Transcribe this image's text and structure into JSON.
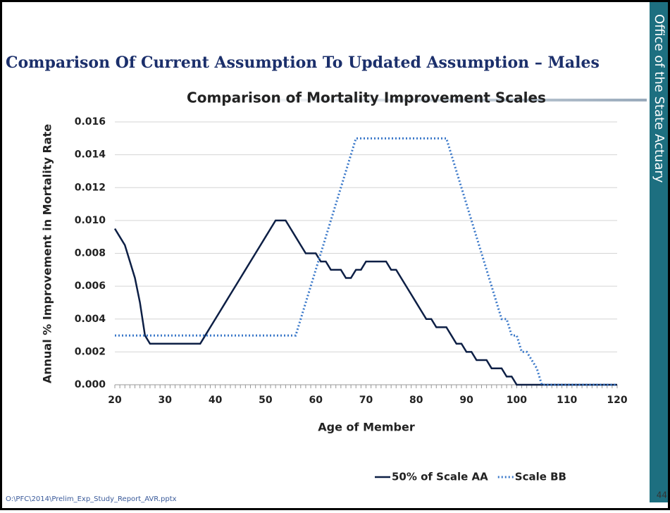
{
  "slide": {
    "title": "Comparison Of Current Assumption To Updated Assumption – Males",
    "sidebar": "Office of the State Actuary",
    "page_number": "44",
    "footer": "O:\\PFC\\2014\\Prelim_Exp_Study_Report_AVR.pptx"
  },
  "chart_data": {
    "type": "line",
    "title": "Comparison of Mortality Improvement Scales",
    "x_label": "Age of Member",
    "y_label": "Annual % Improvement in Mortality Rate",
    "x": [
      20,
      21,
      22,
      23,
      24,
      25,
      26,
      27,
      28,
      29,
      30,
      31,
      32,
      33,
      34,
      35,
      36,
      37,
      38,
      39,
      40,
      41,
      42,
      43,
      44,
      45,
      46,
      47,
      48,
      49,
      50,
      51,
      52,
      53,
      54,
      55,
      56,
      57,
      58,
      59,
      60,
      61,
      62,
      63,
      64,
      65,
      66,
      67,
      68,
      69,
      70,
      71,
      72,
      73,
      74,
      75,
      76,
      77,
      78,
      79,
      80,
      81,
      82,
      83,
      84,
      85,
      86,
      87,
      88,
      89,
      90,
      91,
      92,
      93,
      94,
      95,
      96,
      97,
      98,
      99,
      100,
      101,
      102,
      103,
      104,
      105,
      106,
      107,
      108,
      109,
      110,
      111,
      112,
      113,
      114,
      115,
      116,
      117,
      118,
      119,
      120
    ],
    "series": [
      {
        "name": "50% of Scale AA",
        "color": "#0d1f45",
        "dash": "solid",
        "values": [
          0.0095,
          0.009,
          0.0085,
          0.0075,
          0.0065,
          0.005,
          0.003,
          0.0025,
          0.0025,
          0.0025,
          0.0025,
          0.0025,
          0.0025,
          0.0025,
          0.0025,
          0.0025,
          0.0025,
          0.0025,
          0.003,
          0.0035,
          0.004,
          0.0045,
          0.005,
          0.0055,
          0.006,
          0.0065,
          0.007,
          0.0075,
          0.008,
          0.0085,
          0.009,
          0.0095,
          0.01,
          0.01,
          0.01,
          0.0095,
          0.009,
          0.0085,
          0.008,
          0.008,
          0.008,
          0.0075,
          0.0075,
          0.007,
          0.007,
          0.007,
          0.0065,
          0.0065,
          0.007,
          0.007,
          0.0075,
          0.0075,
          0.0075,
          0.0075,
          0.0075,
          0.007,
          0.007,
          0.0065,
          0.006,
          0.0055,
          0.005,
          0.0045,
          0.004,
          0.004,
          0.0035,
          0.0035,
          0.0035,
          0.003,
          0.0025,
          0.0025,
          0.002,
          0.002,
          0.0015,
          0.0015,
          0.0015,
          0.001,
          0.001,
          0.001,
          0.0005,
          0.0005,
          0,
          0,
          0,
          0,
          0,
          0,
          0,
          0,
          0,
          0,
          0,
          0,
          0,
          0,
          0,
          0,
          0,
          0,
          0,
          0,
          0
        ]
      },
      {
        "name": "Scale BB",
        "color": "#3a78c9",
        "dash": "dotted",
        "values": [
          0.003,
          0.003,
          0.003,
          0.003,
          0.003,
          0.003,
          0.003,
          0.003,
          0.003,
          0.003,
          0.003,
          0.003,
          0.003,
          0.003,
          0.003,
          0.003,
          0.003,
          0.003,
          0.003,
          0.003,
          0.003,
          0.003,
          0.003,
          0.003,
          0.003,
          0.003,
          0.003,
          0.003,
          0.003,
          0.003,
          0.003,
          0.003,
          0.003,
          0.003,
          0.003,
          0.003,
          0.003,
          0.004,
          0.005,
          0.006,
          0.007,
          0.008,
          0.009,
          0.01,
          0.011,
          0.012,
          0.013,
          0.014,
          0.015,
          0.015,
          0.015,
          0.015,
          0.015,
          0.015,
          0.015,
          0.015,
          0.015,
          0.015,
          0.015,
          0.015,
          0.015,
          0.015,
          0.015,
          0.015,
          0.015,
          0.015,
          0.015,
          0.014,
          0.013,
          0.012,
          0.011,
          0.01,
          0.009,
          0.008,
          0.007,
          0.006,
          0.005,
          0.004,
          0.004,
          0.003,
          0.003,
          0.002,
          0.002,
          0.0015,
          0.001,
          0,
          0,
          0,
          0,
          0,
          0,
          0,
          0,
          0,
          0,
          0,
          0,
          0,
          0,
          0,
          0
        ]
      }
    ],
    "xlim": [
      20,
      120
    ],
    "ylim": [
      0,
      0.016
    ],
    "xticks": [
      20,
      30,
      40,
      50,
      60,
      70,
      80,
      90,
      100,
      110,
      120
    ],
    "yticks": [
      {
        "value": 0,
        "label": "0.000"
      },
      {
        "value": 0.002,
        "label": "0.002"
      },
      {
        "value": 0.004,
        "label": "0.004"
      },
      {
        "value": 0.006,
        "label": "0.006"
      },
      {
        "value": 0.008,
        "label": "0.008"
      },
      {
        "value": 0.01,
        "label": "0.010"
      },
      {
        "value": 0.012,
        "label": "0.012"
      },
      {
        "value": 0.014,
        "label": "0.014"
      },
      {
        "value": 0.016,
        "label": "0.016"
      }
    ],
    "grid": true,
    "legend": "bottom"
  }
}
